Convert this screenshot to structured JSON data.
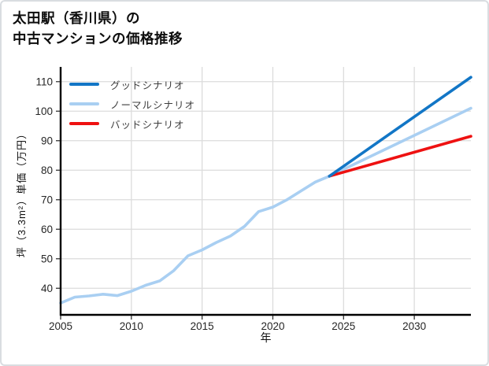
{
  "card": {
    "title_line1": "太田駅（香川県）の",
    "title_line2": "中古マンションの価格推移"
  },
  "chart_data": {
    "type": "line",
    "title": "太田駅（香川県）の中古マンションの価格推移",
    "xlabel": "年",
    "ylabel": "坪（3.3m²）単価（万円）",
    "xlim": [
      2005,
      2034
    ],
    "ylim": [
      31,
      115
    ],
    "x_ticks": [
      2005,
      2010,
      2015,
      2020,
      2025,
      2030
    ],
    "y_ticks": [
      40,
      50,
      60,
      70,
      80,
      90,
      100,
      110
    ],
    "grid": true,
    "legend_position": "top-left-inside",
    "series": [
      {
        "name": "グッドシナリオ",
        "color": "#1276c6",
        "x": [
          2024,
          2034
        ],
        "values": [
          78,
          111.5
        ]
      },
      {
        "name": "ノーマルシナリオ",
        "color": "#a9cff2",
        "x": [
          2005,
          2006,
          2007,
          2008,
          2009,
          2010,
          2011,
          2012,
          2013,
          2014,
          2015,
          2016,
          2017,
          2018,
          2019,
          2020,
          2021,
          2022,
          2023,
          2024,
          2034
        ],
        "values": [
          35,
          37,
          37.4,
          38,
          37.5,
          39,
          41,
          42.5,
          46,
          51,
          53,
          55.5,
          57.7,
          61,
          66,
          67.5,
          70,
          73,
          76,
          78,
          101
        ]
      },
      {
        "name": "バッドシナリオ",
        "color": "#ee1111",
        "x": [
          2024,
          2034
        ],
        "values": [
          78,
          91.5
        ]
      }
    ],
    "colors": {
      "grid": "#dcdcdc",
      "axis": "#000000",
      "tick_text": "#262626"
    }
  }
}
